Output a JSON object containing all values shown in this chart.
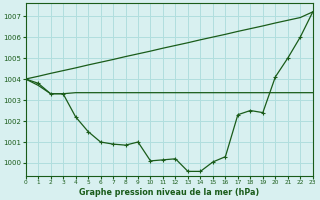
{
  "background_color": "#d8f0f0",
  "grid_color": "#b0dede",
  "line_color": "#1a5c1a",
  "title": "Graphe pression niveau de la mer (hPa)",
  "ylabel_ticks": [
    1000,
    1001,
    1002,
    1003,
    1004,
    1005,
    1006,
    1007
  ],
  "xlabel_ticks": [
    0,
    1,
    2,
    3,
    4,
    5,
    6,
    7,
    8,
    9,
    10,
    11,
    12,
    13,
    14,
    15,
    16,
    17,
    18,
    19,
    20,
    21,
    22,
    23
  ],
  "xlim": [
    0,
    23
  ],
  "ylim": [
    999.4,
    1007.6
  ],
  "series_straight": [
    1004.0,
    1004.13,
    1004.27,
    1004.4,
    1004.53,
    1004.67,
    1004.8,
    1004.93,
    1005.07,
    1005.2,
    1005.33,
    1005.47,
    1005.6,
    1005.73,
    1005.87,
    1006.0,
    1006.13,
    1006.27,
    1006.4,
    1006.53,
    1006.67,
    1006.8,
    1006.93,
    1007.2
  ],
  "series_main": [
    1004.0,
    1003.8,
    1003.3,
    1003.3,
    1002.2,
    1001.5,
    1001.0,
    1000.9,
    1000.85,
    1001.0,
    1000.1,
    1000.15,
    1000.2,
    999.6,
    999.6,
    1000.05,
    1000.3,
    1002.3,
    1002.5,
    1002.4,
    1004.1,
    1005.0,
    1006.0,
    1007.2
  ],
  "series_flat": [
    1004.0,
    1003.7,
    1003.3,
    1003.3,
    1003.35,
    1003.35,
    1003.35,
    1003.35,
    1003.35,
    1003.35,
    1003.35,
    1003.35,
    1003.35,
    1003.35,
    1003.35,
    1003.35,
    1003.35,
    1003.35,
    1003.35,
    1003.35,
    1003.35,
    1003.35,
    1003.35,
    1003.35
  ]
}
